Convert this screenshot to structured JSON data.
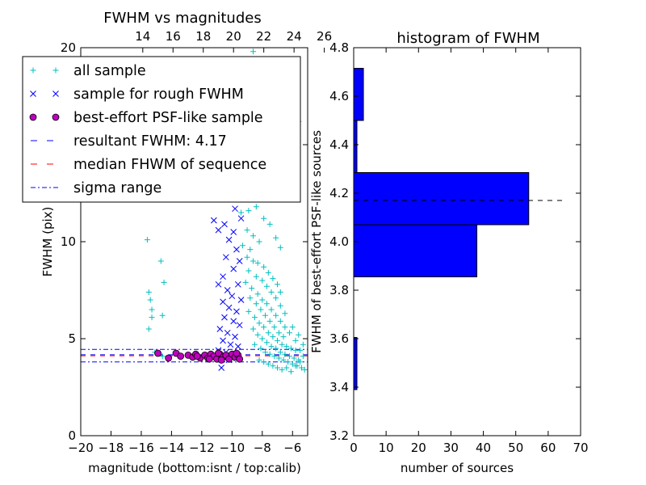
{
  "chart_data": [
    {
      "type": "scatter",
      "title": "FWHM vs magnitudes",
      "xlabel": "magnitude (bottom:isnt / top:calib)",
      "ylabel": "FWHM (pix)",
      "xlim": [
        -20,
        -5
      ],
      "ylim": [
        0,
        20
      ],
      "x_ticks": [
        "−20",
        "−18",
        "−16",
        "−14",
        "−12",
        "−10",
        "−8",
        "−6"
      ],
      "x_tick_values": [
        -20,
        -18,
        -16,
        -14,
        -12,
        -10,
        -8,
        -6
      ],
      "y_ticks": [
        "0",
        "5",
        "10",
        "15",
        "20"
      ],
      "y_tick_values": [
        0,
        5,
        10,
        15,
        20
      ],
      "top_axis": {
        "ticks": [
          "14",
          "16",
          "18",
          "20",
          "22",
          "24",
          "26"
        ],
        "tick_values": [
          -15.9,
          -13.9,
          -11.9,
          -9.9,
          -7.9,
          -5.9,
          -3.9
        ]
      },
      "legend": {
        "placement": "upper-left",
        "entries": [
          {
            "label": "all sample",
            "marker": "plus",
            "color": "#00bfbf"
          },
          {
            "label": "sample for rough FWHM",
            "marker": "x",
            "color": "#0000ff"
          },
          {
            "label": "best-effort PSF-like sample",
            "marker": "circle",
            "color": "#bf00bf"
          },
          {
            "label": "resultant FWHM: 4.17",
            "marker": "dashed-line",
            "color": "#0000ff"
          },
          {
            "label": "median FHWM of sequence",
            "marker": "dashed-line",
            "color": "#ff0000"
          },
          {
            "label": "sigma range",
            "marker": "dashdot-line",
            "color": "#0000ff"
          }
        ]
      },
      "lines": {
        "resultant_fwhm": 4.17,
        "median_fwhm": 4.12,
        "sigma_range": [
          3.8,
          4.45
        ]
      },
      "series": [
        {
          "name": "all sample",
          "marker": "plus",
          "color": "#00bfbf",
          "points": [
            [
              -15.6,
              10.1
            ],
            [
              -14.7,
              9.0
            ],
            [
              -14.5,
              7.9
            ],
            [
              -15.5,
              7.4
            ],
            [
              -15.4,
              7.0
            ],
            [
              -15.3,
              6.5
            ],
            [
              -15.3,
              6.1
            ],
            [
              -14.6,
              6.2
            ],
            [
              -15.5,
              5.5
            ],
            [
              -15.1,
              4.3
            ],
            [
              -14.6,
              4.1
            ],
            [
              -9.6,
              18.1
            ],
            [
              -9.3,
              17.0
            ],
            [
              -8.9,
              19.0
            ],
            [
              -8.6,
              19.8
            ],
            [
              -8.2,
              18.3
            ],
            [
              -7.8,
              16.8
            ],
            [
              -7.5,
              15.4
            ],
            [
              -6.2,
              15.8
            ],
            [
              -5.6,
              16.2
            ],
            [
              -5.9,
              14.7
            ],
            [
              -6.6,
              13.4
            ],
            [
              -7.2,
              13.6
            ],
            [
              -8.3,
              14.1
            ],
            [
              -8.9,
              13.2
            ],
            [
              -9.2,
              12.7
            ],
            [
              -9.6,
              12.5
            ],
            [
              -9.4,
              11.5
            ],
            [
              -8.9,
              11.6
            ],
            [
              -8.4,
              11.8
            ],
            [
              -7.9,
              11.2
            ],
            [
              -7.5,
              10.9
            ],
            [
              -7.1,
              10.2
            ],
            [
              -6.8,
              9.7
            ],
            [
              -9.0,
              10.6
            ],
            [
              -8.6,
              10.3
            ],
            [
              -8.2,
              10.0
            ],
            [
              -9.3,
              9.8
            ],
            [
              -8.8,
              9.6
            ],
            [
              -9.0,
              9.2
            ],
            [
              -8.6,
              9.0
            ],
            [
              -8.3,
              8.9
            ],
            [
              -7.9,
              8.7
            ],
            [
              -7.6,
              8.4
            ],
            [
              -7.3,
              8.1
            ],
            [
              -7.0,
              7.8
            ],
            [
              -6.8,
              7.4
            ],
            [
              -8.9,
              8.5
            ],
            [
              -8.4,
              8.2
            ],
            [
              -8.0,
              8.0
            ],
            [
              -7.7,
              7.7
            ],
            [
              -7.4,
              7.4
            ],
            [
              -7.1,
              7.1
            ],
            [
              -6.8,
              6.7
            ],
            [
              -6.5,
              6.3
            ],
            [
              -9.1,
              7.9
            ],
            [
              -8.7,
              7.6
            ],
            [
              -8.3,
              7.3
            ],
            [
              -8.0,
              7.0
            ],
            [
              -7.7,
              6.8
            ],
            [
              -7.4,
              6.5
            ],
            [
              -7.1,
              6.2
            ],
            [
              -6.8,
              5.9
            ],
            [
              -6.5,
              5.6
            ],
            [
              -6.2,
              5.3
            ],
            [
              -8.8,
              7.1
            ],
            [
              -8.4,
              6.8
            ],
            [
              -8.1,
              6.5
            ],
            [
              -7.8,
              6.2
            ],
            [
              -7.5,
              5.9
            ],
            [
              -7.2,
              5.6
            ],
            [
              -6.9,
              5.3
            ],
            [
              -6.6,
              5.1
            ],
            [
              -8.9,
              6.4
            ],
            [
              -8.5,
              6.1
            ],
            [
              -8.2,
              5.8
            ],
            [
              -7.9,
              5.6
            ],
            [
              -7.6,
              5.3
            ],
            [
              -7.3,
              5.1
            ],
            [
              -7.0,
              4.9
            ],
            [
              -6.7,
              4.7
            ],
            [
              -6.4,
              4.6
            ],
            [
              -6.1,
              4.5
            ],
            [
              -5.8,
              4.4
            ],
            [
              -5.5,
              4.4
            ],
            [
              -8.6,
              5.5
            ],
            [
              -8.3,
              5.2
            ],
            [
              -8.0,
              5.0
            ],
            [
              -7.7,
              4.8
            ],
            [
              -7.4,
              4.6
            ],
            [
              -7.1,
              4.5
            ],
            [
              -6.8,
              4.3
            ],
            [
              -6.5,
              4.2
            ],
            [
              -6.2,
              4.1
            ],
            [
              -5.9,
              4.0
            ],
            [
              -5.6,
              3.9
            ],
            [
              -5.3,
              4.1
            ],
            [
              -8.5,
              4.7
            ],
            [
              -8.1,
              4.5
            ],
            [
              -7.8,
              4.3
            ],
            [
              -7.5,
              4.2
            ],
            [
              -7.2,
              4.1
            ],
            [
              -6.9,
              4.0
            ],
            [
              -6.6,
              3.9
            ],
            [
              -6.3,
              3.8
            ],
            [
              -6.0,
              3.7
            ],
            [
              -5.7,
              3.6
            ],
            [
              -5.4,
              3.5
            ],
            [
              -5.2,
              3.4
            ],
            [
              -8.2,
              3.9
            ],
            [
              -7.9,
              3.8
            ],
            [
              -7.6,
              3.7
            ],
            [
              -7.3,
              3.6
            ],
            [
              -7.0,
              3.5
            ],
            [
              -6.7,
              3.4
            ],
            [
              -6.4,
              3.5
            ],
            [
              -6.1,
              3.3
            ],
            [
              -5.8,
              3.6
            ],
            [
              -5.5,
              3.8
            ],
            [
              -5.3,
              4.7
            ],
            [
              -5.6,
              5.2
            ],
            [
              -5.8,
              4.9
            ],
            [
              -6.0,
              5.6
            ]
          ]
        },
        {
          "name": "sample for rough FWHM",
          "marker": "x",
          "color": "#0000ff",
          "points": [
            [
              -9.8,
              17.5
            ],
            [
              -9.4,
              16.9
            ],
            [
              -9.9,
              16.3
            ],
            [
              -9.6,
              15.7
            ],
            [
              -10.1,
              15.0
            ],
            [
              -9.7,
              14.4
            ],
            [
              -9.9,
              13.9
            ],
            [
              -9.5,
              13.3
            ],
            [
              -10.0,
              12.8
            ],
            [
              -9.6,
              12.3
            ],
            [
              -11.2,
              11.1
            ],
            [
              -10.9,
              10.6
            ],
            [
              -10.5,
              10.9
            ],
            [
              -9.8,
              11.7
            ],
            [
              -9.4,
              11.2
            ],
            [
              -9.9,
              10.5
            ],
            [
              -10.2,
              10.1
            ],
            [
              -9.7,
              9.6
            ],
            [
              -10.4,
              9.2
            ],
            [
              -9.5,
              9.0
            ],
            [
              -9.9,
              8.6
            ],
            [
              -10.6,
              8.2
            ],
            [
              -10.9,
              7.8
            ],
            [
              -10.3,
              7.5
            ],
            [
              -9.6,
              7.8
            ],
            [
              -10.0,
              7.2
            ],
            [
              -9.4,
              7.0
            ],
            [
              -10.6,
              6.9
            ],
            [
              -10.2,
              6.6
            ],
            [
              -9.7,
              6.4
            ],
            [
              -10.5,
              6.1
            ],
            [
              -9.9,
              5.9
            ],
            [
              -9.5,
              5.7
            ],
            [
              -10.8,
              5.5
            ],
            [
              -10.3,
              5.3
            ],
            [
              -9.8,
              5.1
            ],
            [
              -10.6,
              4.9
            ],
            [
              -10.1,
              4.7
            ],
            [
              -9.6,
              4.6
            ],
            [
              -10.9,
              4.4
            ],
            [
              -10.4,
              4.3
            ],
            [
              -9.9,
              4.2
            ],
            [
              -10.2,
              3.9
            ],
            [
              -10.7,
              3.5
            ],
            [
              -9.7,
              4.0
            ]
          ]
        },
        {
          "name": "best-effort PSF-like sample",
          "marker": "circle",
          "color": "#bf00bf",
          "points": [
            [
              -14.9,
              4.25
            ],
            [
              -14.2,
              4.0
            ],
            [
              -13.7,
              4.25
            ],
            [
              -13.4,
              4.1
            ],
            [
              -12.9,
              4.15
            ],
            [
              -12.6,
              4.05
            ],
            [
              -12.4,
              4.2
            ],
            [
              -12.1,
              4.0
            ],
            [
              -11.8,
              4.15
            ],
            [
              -11.6,
              4.0
            ],
            [
              -11.4,
              4.2
            ],
            [
              -11.2,
              4.1
            ],
            [
              -11.0,
              3.95
            ],
            [
              -10.8,
              4.2
            ],
            [
              -10.6,
              4.05
            ],
            [
              -10.4,
              4.15
            ],
            [
              -10.2,
              3.95
            ],
            [
              -10.0,
              4.2
            ],
            [
              -9.8,
              4.05
            ],
            [
              -9.6,
              4.15
            ],
            [
              -9.5,
              3.95
            ],
            [
              -10.9,
              4.25
            ],
            [
              -11.5,
              3.95
            ],
            [
              -12.3,
              4.1
            ],
            [
              -10.7,
              3.9
            ],
            [
              -9.7,
              4.25
            ]
          ]
        }
      ]
    },
    {
      "type": "bar",
      "orientation": "horizontal",
      "title": "histogram of FWHM",
      "xlabel": "number of sources",
      "ylabel": "FWHM of best-effort PSF-like sources",
      "xlim": [
        0,
        70
      ],
      "ylim": [
        3.2,
        4.8
      ],
      "x_ticks": [
        "0",
        "10",
        "20",
        "30",
        "40",
        "50",
        "60",
        "70"
      ],
      "x_tick_values": [
        0,
        10,
        20,
        30,
        40,
        50,
        60,
        70
      ],
      "y_ticks": [
        "3.2",
        "3.4",
        "3.6",
        "3.8",
        "4.0",
        "4.2",
        "4.4",
        "4.6",
        "4.8"
      ],
      "y_tick_values": [
        3.2,
        3.4,
        3.6,
        3.8,
        4.0,
        4.2,
        4.4,
        4.6,
        4.8
      ],
      "bar_color": "#0000ff",
      "bins": [
        {
          "low": 3.39,
          "high": 3.605,
          "count": 1
        },
        {
          "low": 3.605,
          "high": 3.855,
          "count": 0
        },
        {
          "low": 3.855,
          "high": 4.07,
          "count": 38
        },
        {
          "low": 4.07,
          "high": 4.285,
          "count": 54
        },
        {
          "low": 4.285,
          "high": 4.5,
          "count": 1
        },
        {
          "low": 4.5,
          "high": 4.715,
          "count": 3
        }
      ],
      "reference_line": {
        "value": 4.17,
        "style": "dashed",
        "color": "#000000",
        "x_extent": [
          0,
          65
        ]
      }
    }
  ]
}
